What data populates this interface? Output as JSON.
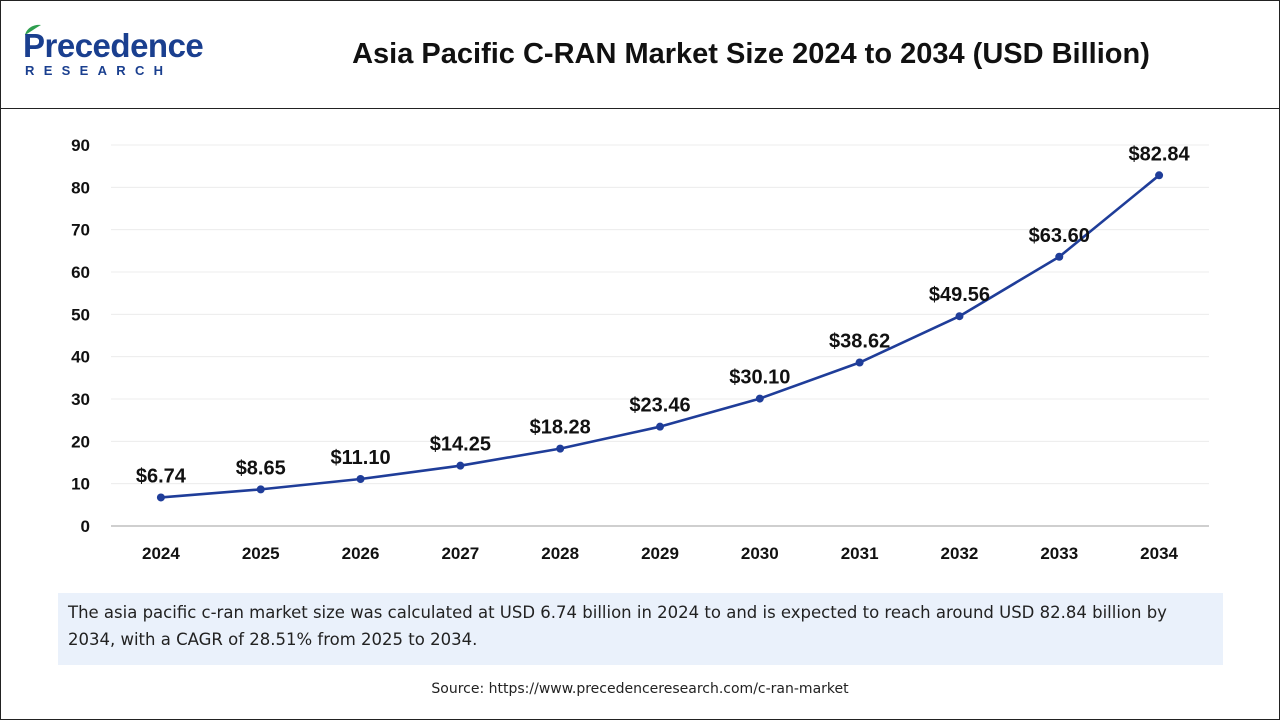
{
  "header": {
    "logo_word": "Precedence",
    "logo_sub": "RESEARCH",
    "title": "Asia Pacific C-RAN Market Size 2024 to 2034 (USD Billion)"
  },
  "colors": {
    "line": "#1f3d99",
    "brand": "#1a3f8f",
    "note_bg": "#eaf1fb"
  },
  "chart_data": {
    "type": "line",
    "title": "Asia Pacific C-RAN Market Size 2024 to 2034 (USD Billion)",
    "xlabel": "",
    "ylabel": "",
    "categories": [
      "2024",
      "2025",
      "2026",
      "2027",
      "2028",
      "2029",
      "2030",
      "2031",
      "2032",
      "2033",
      "2034"
    ],
    "values": [
      6.74,
      8.65,
      11.1,
      14.25,
      18.28,
      23.46,
      30.1,
      38.62,
      49.56,
      63.6,
      82.84
    ],
    "data_labels": [
      "$6.74",
      "$8.65",
      "$11.10",
      "$14.25",
      "$18.28",
      "$23.46",
      "$30.10",
      "$38.62",
      "$49.56",
      "$63.60",
      "$82.84"
    ],
    "ylim": [
      0,
      90
    ],
    "yticks": [
      0,
      10,
      20,
      30,
      40,
      50,
      60,
      70,
      80,
      90
    ],
    "grid": true,
    "legend": "none"
  },
  "note": "The asia pacific c-ran market size was calculated at USD 6.74 billion in 2024 to and is expected to reach around USD 82.84 billion by 2034, with a CAGR of 28.51% from 2025 to 2034.",
  "source": "Source: https://www.precedenceresearch.com/c-ran-market"
}
